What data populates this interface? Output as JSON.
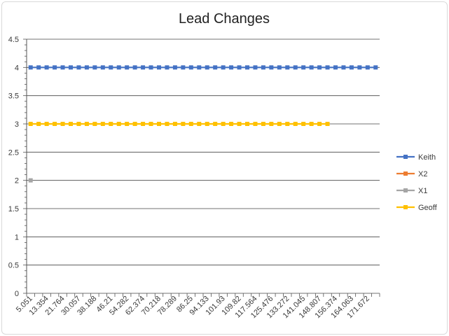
{
  "chart_data": {
    "type": "line",
    "title": "Lead Changes",
    "xlabel": "",
    "ylabel": "",
    "ylim": [
      0,
      4.5
    ],
    "yticks": [
      "0",
      "0.5",
      "1",
      "1.5",
      "2",
      "2.5",
      "3",
      "3.5",
      "4",
      "4.5"
    ],
    "grid": true,
    "legend_position": "right",
    "x_tick_labels": [
      "5.051",
      "13.354",
      "21.764",
      "30.057",
      "38.188",
      "46.21",
      "54.282",
      "62.374",
      "70.218",
      "78.289",
      "86.25",
      "94.133",
      "101.93",
      "109.82",
      "117.564",
      "125.476",
      "133.272",
      "141.045",
      "148.807",
      "156.374",
      "164.063",
      "171.672"
    ],
    "category_count": 44,
    "series": [
      {
        "name": "Keith",
        "color": "#4472c4",
        "values": [
          4,
          4,
          4,
          4,
          4,
          4,
          4,
          4,
          4,
          4,
          4,
          4,
          4,
          4,
          4,
          4,
          4,
          4,
          4,
          4,
          4,
          4,
          4,
          4,
          4,
          4,
          4,
          4,
          4,
          4,
          4,
          4,
          4,
          4,
          4,
          4,
          4,
          4,
          4,
          4,
          4,
          4,
          4,
          4
        ]
      },
      {
        "name": "X2",
        "color": "#ed7d31",
        "values": []
      },
      {
        "name": "X1",
        "color": "#a5a5a5",
        "values": [
          2
        ]
      },
      {
        "name": "Geoff",
        "color": "#ffc000",
        "values": [
          3,
          3,
          3,
          3,
          3,
          3,
          3,
          3,
          3,
          3,
          3,
          3,
          3,
          3,
          3,
          3,
          3,
          3,
          3,
          3,
          3,
          3,
          3,
          3,
          3,
          3,
          3,
          3,
          3,
          3,
          3,
          3,
          3,
          3,
          3,
          3,
          3,
          3
        ]
      }
    ]
  }
}
